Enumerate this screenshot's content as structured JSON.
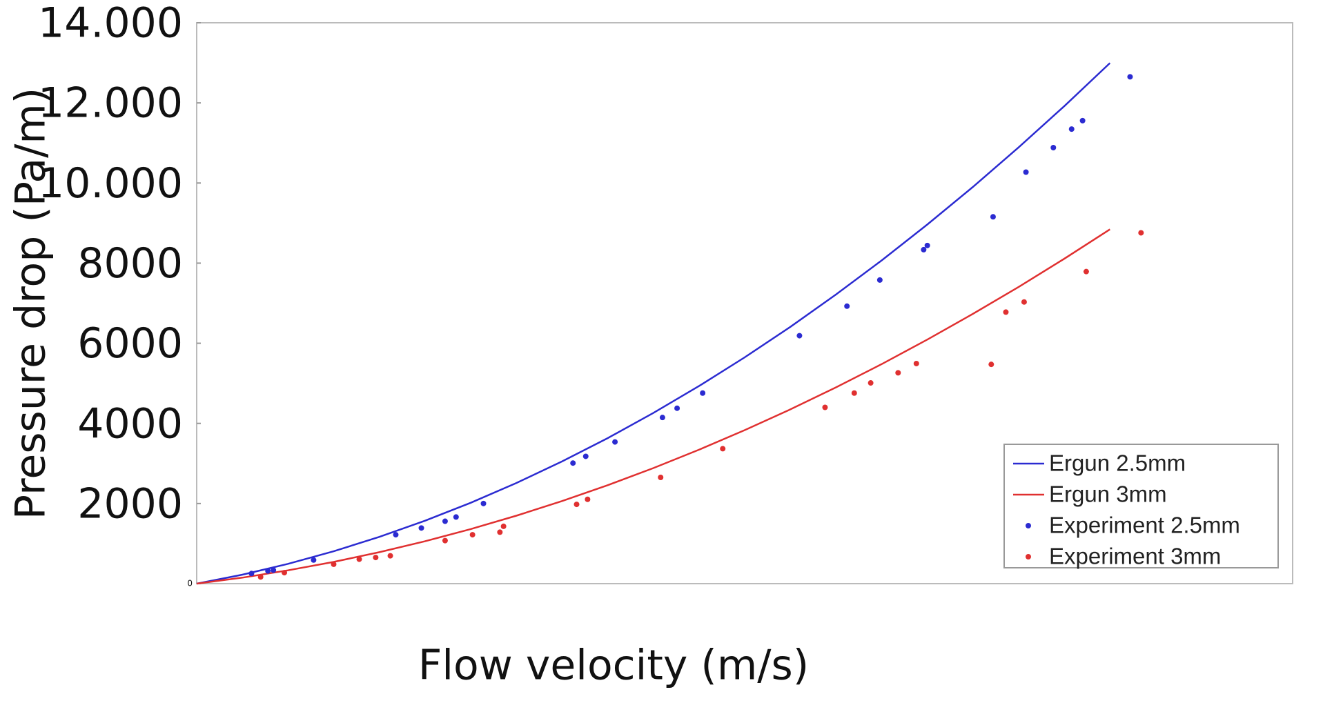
{
  "chart_data": {
    "type": "line",
    "x_label": "Flow velocity (m/s)",
    "y_label": "Pressure drop (Pa/m)",
    "xlim": [
      0,
      6
    ],
    "ylim": [
      0,
      14000
    ],
    "yticks": [
      0,
      2000,
      4000,
      6000,
      8000,
      {
        "value": 10000,
        "label": "10.000"
      },
      {
        "value": 12000,
        "label": "12.000"
      },
      {
        "value": 14000,
        "label": "14.000"
      }
    ],
    "legend": "lower right",
    "series": [
      {
        "name": "Ergun 2.5mm",
        "kind": "line",
        "color": "#2b2bd1",
        "x": [
          0,
          0.25,
          0.5,
          0.75,
          1,
          1.25,
          1.5,
          1.75,
          2,
          2.25,
          2.5,
          2.75,
          3,
          3.25,
          3.5,
          3.75,
          4,
          4.25,
          4.5,
          4.75,
          5
        ],
        "values": [
          0,
          224,
          494,
          808,
          1167,
          1570,
          2019,
          2512,
          3050,
          3632,
          4260,
          4932,
          5649,
          6410,
          7217,
          8068,
          8964,
          9904,
          10890,
          11920,
          12995
        ]
      },
      {
        "name": "Ergun 3mm",
        "kind": "line",
        "color": "#e03030",
        "x": [
          0,
          0.25,
          0.5,
          0.75,
          1,
          1.25,
          1.5,
          1.75,
          2,
          2.25,
          2.5,
          2.75,
          3,
          3.25,
          3.5,
          3.75,
          4,
          4.25,
          4.5,
          4.75,
          5
        ],
        "values": [
          0,
          150,
          332,
          542,
          785,
          1058,
          1362,
          1696,
          2062,
          2458,
          2885,
          3342,
          3831,
          4350,
          4900,
          5480,
          6092,
          6734,
          7407,
          8110,
          8845
        ]
      },
      {
        "name": "Experiment 2.5mm",
        "kind": "scatter",
        "color": "#2b2bd1",
        "x": [
          0.3,
          0.39,
          0.42,
          0.64,
          1.09,
          1.23,
          1.36,
          1.42,
          1.57,
          2.06,
          2.13,
          2.29,
          2.55,
          2.63,
          2.77,
          3.3,
          3.56,
          3.74,
          3.98,
          4.0,
          4.36,
          4.54,
          4.69,
          4.79,
          4.85,
          5.11
        ],
        "values": [
          253,
          316,
          337,
          589,
          1221,
          1389,
          1558,
          1663,
          2000,
          3010,
          3178,
          3537,
          4147,
          4379,
          4757,
          6189,
          6926,
          7579,
          8336,
          8441,
          9157,
          10272,
          10883,
          11346,
          11557,
          12651
        ]
      },
      {
        "name": "Experiment 3mm",
        "kind": "scatter",
        "color": "#e03030",
        "x": [
          0.35,
          0.48,
          0.75,
          0.89,
          0.98,
          1.06,
          1.36,
          1.51,
          1.66,
          1.68,
          2.08,
          2.14,
          2.54,
          2.88,
          3.44,
          3.6,
          3.69,
          3.84,
          3.94,
          4.35,
          4.43,
          4.53,
          4.87,
          5.17
        ],
        "values": [
          168,
          274,
          484,
          610,
          653,
          695,
          1074,
          1221,
          1284,
          1431,
          1979,
          2105,
          2652,
          3368,
          4400,
          4757,
          5010,
          5263,
          5494,
          5473,
          6778,
          7031,
          7789,
          8757
        ]
      }
    ]
  }
}
